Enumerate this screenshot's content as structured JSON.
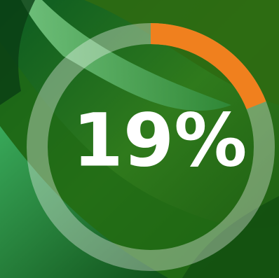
{
  "chart_data": {
    "type": "progress-ring",
    "values": [
      19
    ],
    "value_labels": [
      "19%"
    ],
    "ylim": [
      0,
      100
    ],
    "color": "#f0801e",
    "track_color": "rgba(255,255,255,0.35)"
  }
}
